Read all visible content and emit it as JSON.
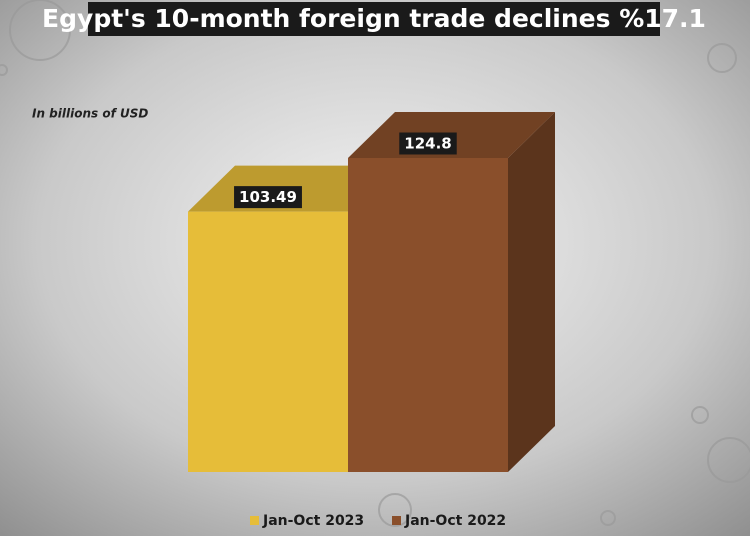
{
  "chart_data": {
    "type": "bar3d",
    "title": "Egypt's 10-month foreign trade declines %17.1",
    "y_label": "In billions of USD",
    "categories": [
      "Jan-Oct 2023",
      "Jan-Oct 2022"
    ],
    "values": [
      103.49,
      124.8
    ],
    "colors": [
      "#e6bd39",
      "#8a4f2b"
    ],
    "legend": "bottom"
  }
}
